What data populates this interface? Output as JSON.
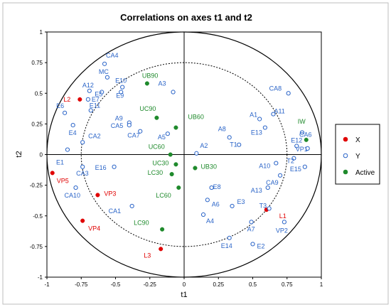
{
  "chart_data": {
    "type": "scatter",
    "title": "Correlations on axes t1 and t2",
    "xlabel": "t1",
    "ylabel": "t2",
    "xlim": [
      -1,
      1
    ],
    "ylim": [
      -1,
      1
    ],
    "x_ticks": [
      "-1",
      "-0.75",
      "-0.5",
      "-0.25",
      "0",
      "0.25",
      "0.5",
      "0.75",
      "1"
    ],
    "y_ticks": [
      "1",
      "0.75",
      "0.5",
      "0.25",
      "0",
      "-0.25",
      "-0.5",
      "-0.75",
      "-1"
    ],
    "legend_position": "right",
    "circles": {
      "outer_radius": 1.0,
      "inner_radius": 0.75
    },
    "colors": {
      "X": "#e00000",
      "Y": "#2a64c8",
      "Active": "#1f8a2c"
    },
    "legend": [
      {
        "name": "X",
        "marker": "filled",
        "color": "#e00000"
      },
      {
        "name": "Y",
        "marker": "open",
        "color": "#2a64c8"
      },
      {
        "name": "Active",
        "marker": "filled",
        "color": "#1f8a2c"
      }
    ],
    "series": [
      {
        "name": "X",
        "points": [
          {
            "label": "L2",
            "x": -0.76,
            "y": 0.45
          },
          {
            "label": "VP5",
            "x": -0.96,
            "y": -0.15
          },
          {
            "label": "VP3",
            "x": -0.63,
            "y": -0.33
          },
          {
            "label": "VP4",
            "x": -0.74,
            "y": -0.54
          },
          {
            "label": "L3",
            "x": -0.17,
            "y": -0.77
          },
          {
            "label": "L1",
            "x": 0.6,
            "y": -0.45
          }
        ]
      },
      {
        "name": "Y",
        "points": [
          {
            "label": "CA4",
            "x": -0.58,
            "y": 0.74
          },
          {
            "label": "MC",
            "x": -0.56,
            "y": 0.63
          },
          {
            "label": "A12",
            "x": -0.69,
            "y": 0.52
          },
          {
            "label": "E10",
            "x": -0.45,
            "y": 0.55
          },
          {
            "label": "E5",
            "x": -0.6,
            "y": 0.51
          },
          {
            "label": "E9",
            "x": -0.46,
            "y": 0.51
          },
          {
            "label": "A3",
            "x": -0.08,
            "y": 0.51
          },
          {
            "label": "E7",
            "x": -0.7,
            "y": 0.45
          },
          {
            "label": "E6",
            "x": -0.87,
            "y": 0.34
          },
          {
            "label": "E11",
            "x": -0.68,
            "y": 0.36
          },
          {
            "label": "E4",
            "x": -0.81,
            "y": 0.24
          },
          {
            "label": "A9",
            "x": -0.4,
            "y": 0.26
          },
          {
            "label": "CA5",
            "x": -0.4,
            "y": 0.24
          },
          {
            "label": "CA7",
            "x": -0.32,
            "y": 0.19
          },
          {
            "label": "A5",
            "x": -0.12,
            "y": 0.17
          },
          {
            "label": "CA2",
            "x": -0.74,
            "y": 0.1
          },
          {
            "label": "E1",
            "x": -0.85,
            "y": 0.04
          },
          {
            "label": "CA3",
            "x": -0.74,
            "y": -0.1
          },
          {
            "label": "E16",
            "x": -0.51,
            "y": -0.1
          },
          {
            "label": "CA10",
            "x": -0.79,
            "y": -0.27
          },
          {
            "label": "CA1",
            "x": -0.38,
            "y": -0.42
          },
          {
            "label": "A2",
            "x": 0.09,
            "y": 0.01
          },
          {
            "label": "A8",
            "x": 0.33,
            "y": 0.14
          },
          {
            "label": "T1",
            "x": 0.4,
            "y": 0.08
          },
          {
            "label": "A1",
            "x": 0.55,
            "y": 0.29
          },
          {
            "label": "E13",
            "x": 0.59,
            "y": 0.22
          },
          {
            "label": "CA8",
            "x": 0.76,
            "y": 0.5
          },
          {
            "label": "A11",
            "x": 0.65,
            "y": 0.33
          },
          {
            "label": "CA6",
            "x": 0.86,
            "y": 0.18
          },
          {
            "label": "E12",
            "x": 0.82,
            "y": 0.07
          },
          {
            "label": "T2",
            "x": 0.8,
            "y": -0.03
          },
          {
            "label": "VP1",
            "x": 0.9,
            "y": 0.05
          },
          {
            "label": "E15",
            "x": 0.88,
            "y": -0.1
          },
          {
            "label": "A10",
            "x": 0.67,
            "y": -0.07
          },
          {
            "label": "CA9",
            "x": 0.7,
            "y": -0.17
          },
          {
            "label": "A13",
            "x": 0.61,
            "y": -0.27
          },
          {
            "label": "T3",
            "x": 0.62,
            "y": -0.44
          },
          {
            "label": "E8",
            "x": 0.2,
            "y": -0.27
          },
          {
            "label": "A6",
            "x": 0.17,
            "y": -0.37
          },
          {
            "label": "E3",
            "x": 0.35,
            "y": -0.42
          },
          {
            "label": "A4",
            "x": 0.14,
            "y": -0.49
          },
          {
            "label": "A7",
            "x": 0.49,
            "y": -0.55
          },
          {
            "label": "VP2",
            "x": 0.73,
            "y": -0.55
          },
          {
            "label": "E14",
            "x": 0.33,
            "y": -0.68
          },
          {
            "label": "E2",
            "x": 0.5,
            "y": -0.73
          }
        ]
      },
      {
        "name": "Active",
        "points": [
          {
            "label": "UB90",
            "x": -0.27,
            "y": 0.58
          },
          {
            "label": "UC90",
            "x": -0.2,
            "y": 0.3
          },
          {
            "label": "UB60",
            "x": -0.06,
            "y": 0.22
          },
          {
            "label": "UC60",
            "x": -0.1,
            "y": 0.0
          },
          {
            "label": "UC30",
            "x": -0.06,
            "y": -0.08
          },
          {
            "label": "UB30",
            "x": 0.08,
            "y": -0.11
          },
          {
            "label": "LC30",
            "x": -0.09,
            "y": -0.16
          },
          {
            "label": "LC60",
            "x": -0.04,
            "y": -0.27
          },
          {
            "label": "LC90",
            "x": -0.16,
            "y": -0.61
          },
          {
            "label": "IW",
            "x": 0.89,
            "y": 0.12
          }
        ]
      }
    ]
  }
}
